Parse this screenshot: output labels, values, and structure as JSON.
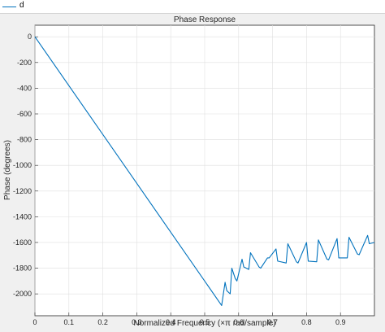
{
  "legend": {
    "label": "d",
    "color": "#0072bd"
  },
  "chart_data": {
    "type": "line",
    "title": "Phase Response",
    "xlabel": "Normalized Frequency (×π rad/sample)",
    "ylabel": "Phase (degrees)",
    "xlim": [
      0,
      1
    ],
    "ylim": [
      -2170,
      90
    ],
    "grid": true,
    "xticks": [
      0,
      0.1,
      0.2,
      0.3,
      0.4,
      0.5,
      0.6,
      0.7,
      0.8,
      0.9
    ],
    "xtick_labels": [
      "0",
      "0.1",
      "0.2",
      "0.3",
      "0.4",
      "0.5",
      "0.6",
      "0.7",
      "0.8",
      "0.9"
    ],
    "yticks": [
      0,
      -200,
      -400,
      -600,
      -800,
      -1000,
      -1200,
      -1400,
      -1600,
      -1800,
      -2000
    ],
    "ytick_labels": [
      "0",
      "-200",
      "-400",
      "-600",
      "-800",
      "-1000",
      "-1200",
      "-1400",
      "-1600",
      "-1800",
      "-2000"
    ],
    "series": [
      {
        "color": "#0072bd",
        "x": [
          0,
          0.55,
          0.56,
          0.565,
          0.575,
          0.58,
          0.59,
          0.595,
          0.61,
          0.615,
          0.63,
          0.635,
          0.66,
          0.665,
          0.685,
          0.69,
          0.71,
          0.715,
          0.74,
          0.745,
          0.77,
          0.775,
          0.8,
          0.805,
          0.83,
          0.835,
          0.86,
          0.865,
          0.89,
          0.895,
          0.92,
          0.925,
          0.95,
          0.955,
          0.98,
          0.985,
          1.0
        ],
        "y": [
          0,
          -2090,
          -1910,
          -1975,
          -2000,
          -1800,
          -1880,
          -1900,
          -1730,
          -1790,
          -1810,
          -1680,
          -1790,
          -1800,
          -1720,
          -1720,
          -1650,
          -1745,
          -1760,
          -1610,
          -1750,
          -1760,
          -1600,
          -1745,
          -1750,
          -1580,
          -1730,
          -1735,
          -1570,
          -1720,
          -1720,
          -1560,
          -1690,
          -1695,
          -1545,
          -1610,
          -1600
        ]
      }
    ]
  }
}
